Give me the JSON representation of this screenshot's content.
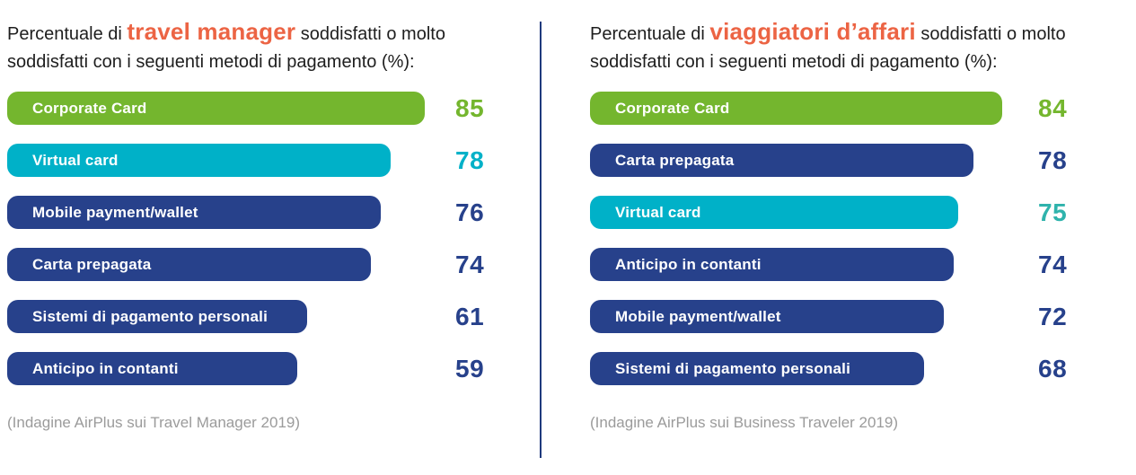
{
  "colors": {
    "green": "#74b62e",
    "cyan": "#00b1c8",
    "navy": "#27418b",
    "teal_value": "#2fb3ac",
    "orange_highlight": "#ec6444",
    "divider_navy": "#1f3a7d",
    "footnote_gray": "#9b9b9b",
    "title_text": "#1e1e1e",
    "bar_label_white": "#ffffff"
  },
  "panels": [
    {
      "id": "travel-manager",
      "title_prefix": "Percentuale di ",
      "title_highlight": "travel manager",
      "title_suffix": " soddisfatti o molto soddisfatti con i seguenti metodi di pagamento (%):",
      "footnote": "(Indagine AirPlus sui Travel Manager 2019)",
      "bars": [
        {
          "label": "Corporate Card",
          "value": 85,
          "color": "#74b62e",
          "value_color": "#74b62e"
        },
        {
          "label": "Virtual card",
          "value": 78,
          "color": "#00b1c8",
          "value_color": "#00b1c8"
        },
        {
          "label": "Mobile payment/wallet",
          "value": 76,
          "color": "#27418b",
          "value_color": "#27418b"
        },
        {
          "label": "Carta prepagata",
          "value": 74,
          "color": "#27418b",
          "value_color": "#27418b"
        },
        {
          "label": "Sistemi di pagamento personali",
          "value": 61,
          "color": "#27418b",
          "value_color": "#27418b"
        },
        {
          "label": "Anticipo in contanti",
          "value": 59,
          "color": "#27418b",
          "value_color": "#27418b"
        }
      ]
    },
    {
      "id": "viaggiatori-affari",
      "title_prefix": "Percentuale di ",
      "title_highlight": "viaggiatori d’affari",
      "title_suffix": " soddisfatti o molto soddisfatti con i seguenti metodi di pagamento (%):",
      "footnote": "(Indagine AirPlus sui Business Traveler 2019)",
      "bars": [
        {
          "label": "Corporate Card",
          "value": 84,
          "color": "#74b62e",
          "value_color": "#74b62e"
        },
        {
          "label": "Carta prepagata",
          "value": 78,
          "color": "#27418b",
          "value_color": "#27418b"
        },
        {
          "label": "Virtual card",
          "value": 75,
          "color": "#00b1c8",
          "value_color": "#2fb3ac"
        },
        {
          "label": "Anticipo in contanti",
          "value": 74,
          "color": "#27418b",
          "value_color": "#27418b"
        },
        {
          "label": "Mobile payment/wallet",
          "value": 72,
          "color": "#27418b",
          "value_color": "#27418b"
        },
        {
          "label": "Sistemi di pagamento personali",
          "value": 68,
          "color": "#27418b",
          "value_color": "#27418b"
        }
      ]
    }
  ],
  "chart_data": [
    {
      "type": "bar",
      "orientation": "horizontal",
      "title": "Percentuale di travel manager soddisfatti o molto soddisfatti con i seguenti metodi di pagamento (%):",
      "categories": [
        "Corporate Card",
        "Virtual card",
        "Mobile payment/wallet",
        "Carta prepagata",
        "Sistemi di pagamento personali",
        "Anticipo in contanti"
      ],
      "values": [
        85,
        78,
        76,
        74,
        61,
        59
      ],
      "xlim": [
        0,
        100
      ],
      "grid": false,
      "legend": false,
      "data_labels": "right of bars",
      "source": "(Indagine AirPlus sui Travel Manager 2019)"
    },
    {
      "type": "bar",
      "orientation": "horizontal",
      "title": "Percentuale di viaggiatori d’affari soddisfatti o molto soddisfatti con i seguenti metodi di pagamento (%):",
      "categories": [
        "Corporate Card",
        "Carta prepagata",
        "Virtual card",
        "Anticipo in contanti",
        "Mobile payment/wallet",
        "Sistemi di pagamento personali"
      ],
      "values": [
        84,
        78,
        75,
        74,
        72,
        68
      ],
      "xlim": [
        0,
        100
      ],
      "grid": false,
      "legend": false,
      "data_labels": "right of bars",
      "source": "(Indagine AirPlus sui Business Traveler 2019)"
    }
  ]
}
